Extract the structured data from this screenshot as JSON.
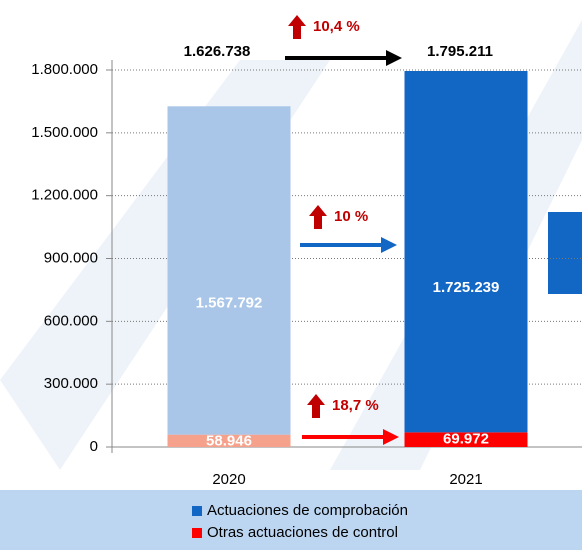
{
  "chart_data": {
    "type": "stacked_bar",
    "categories": [
      "2020",
      "2021"
    ],
    "series": [
      {
        "name": "Actuaciones de comprobación",
        "color": "#1266c4",
        "colors": [
          "#a9c6e8",
          "#1266c4"
        ],
        "values": [
          1567792,
          1725239
        ],
        "value_labels": [
          "1.567.792",
          "1.725.239"
        ]
      },
      {
        "name": "Otras actuaciones de control",
        "color": "#ff0000",
        "colors": [
          "#f5a18b",
          "#ff0000"
        ],
        "values": [
          58946,
          69972
        ],
        "value_labels": [
          "58.946",
          "69.972"
        ]
      }
    ],
    "totals": [
      1626738,
      1795211
    ],
    "total_labels": [
      "1.626.738",
      "1.795.211"
    ],
    "annotations": [
      {
        "text": "10,4 %",
        "color": "#c00000"
      },
      {
        "text": "10 %",
        "color": "#c00000"
      },
      {
        "text": "18,7 %",
        "color": "#c00000"
      }
    ],
    "ylim": [
      0,
      1800000
    ],
    "yticks": [
      0,
      {
        "value": 300000,
        "label": "300.000"
      },
      {
        "value": 600000,
        "label": "600.000"
      },
      {
        "value": 900000,
        "label": "900.000"
      },
      {
        "value": 1200000,
        "label": "1.200.000"
      },
      {
        "value": 1500000,
        "label": "1.500.000"
      },
      {
        "value": 1800000,
        "label": "1.800.000"
      }
    ],
    "grid": true
  }
}
